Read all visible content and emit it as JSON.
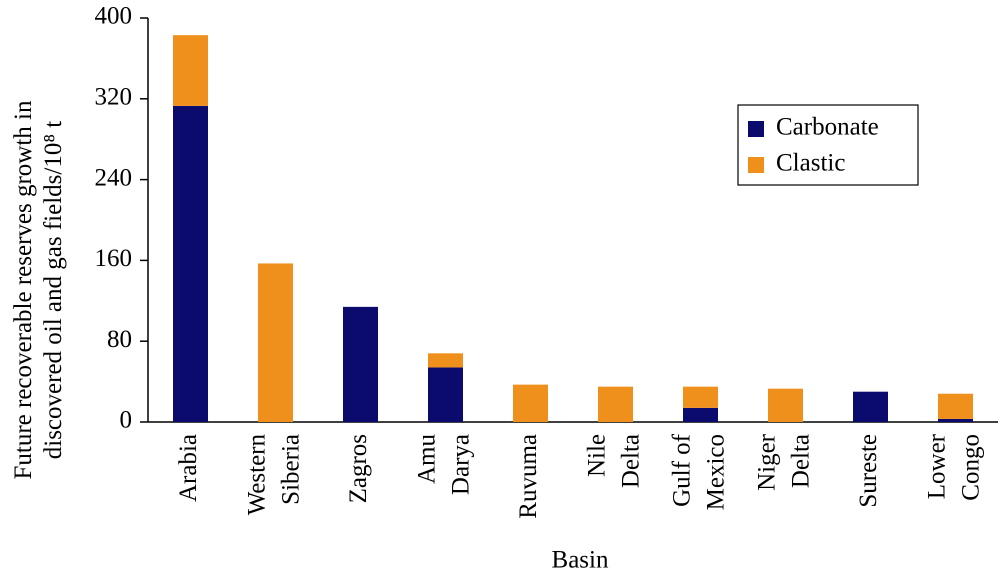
{
  "chart_data": {
    "type": "stacked-bar",
    "x_label": "Basin",
    "y_label": "Future recoverable reserves growth in discovered oil and gas fields/10⁸ t",
    "categories": [
      "Arabia",
      "Western Siberia",
      "Zagros",
      "Amu Darya",
      "Ruvuma",
      "Nile Delta",
      "Gulf of Mexico",
      "Niger Delta",
      "Sureste",
      "Lower Congo"
    ],
    "series": [
      {
        "name": "Carbonate",
        "color": "#0b0b6e",
        "values": [
          313,
          0,
          114,
          54,
          0,
          0,
          14,
          0,
          30,
          3
        ]
      },
      {
        "name": "Clastic",
        "color": "#f0901c",
        "values": [
          70,
          157,
          0,
          14,
          37,
          35,
          21,
          33,
          0,
          25
        ]
      }
    ],
    "ylim": [
      0,
      400
    ],
    "yticks": [
      0,
      80,
      160,
      240,
      320,
      400
    ],
    "legend": "upper right"
  }
}
